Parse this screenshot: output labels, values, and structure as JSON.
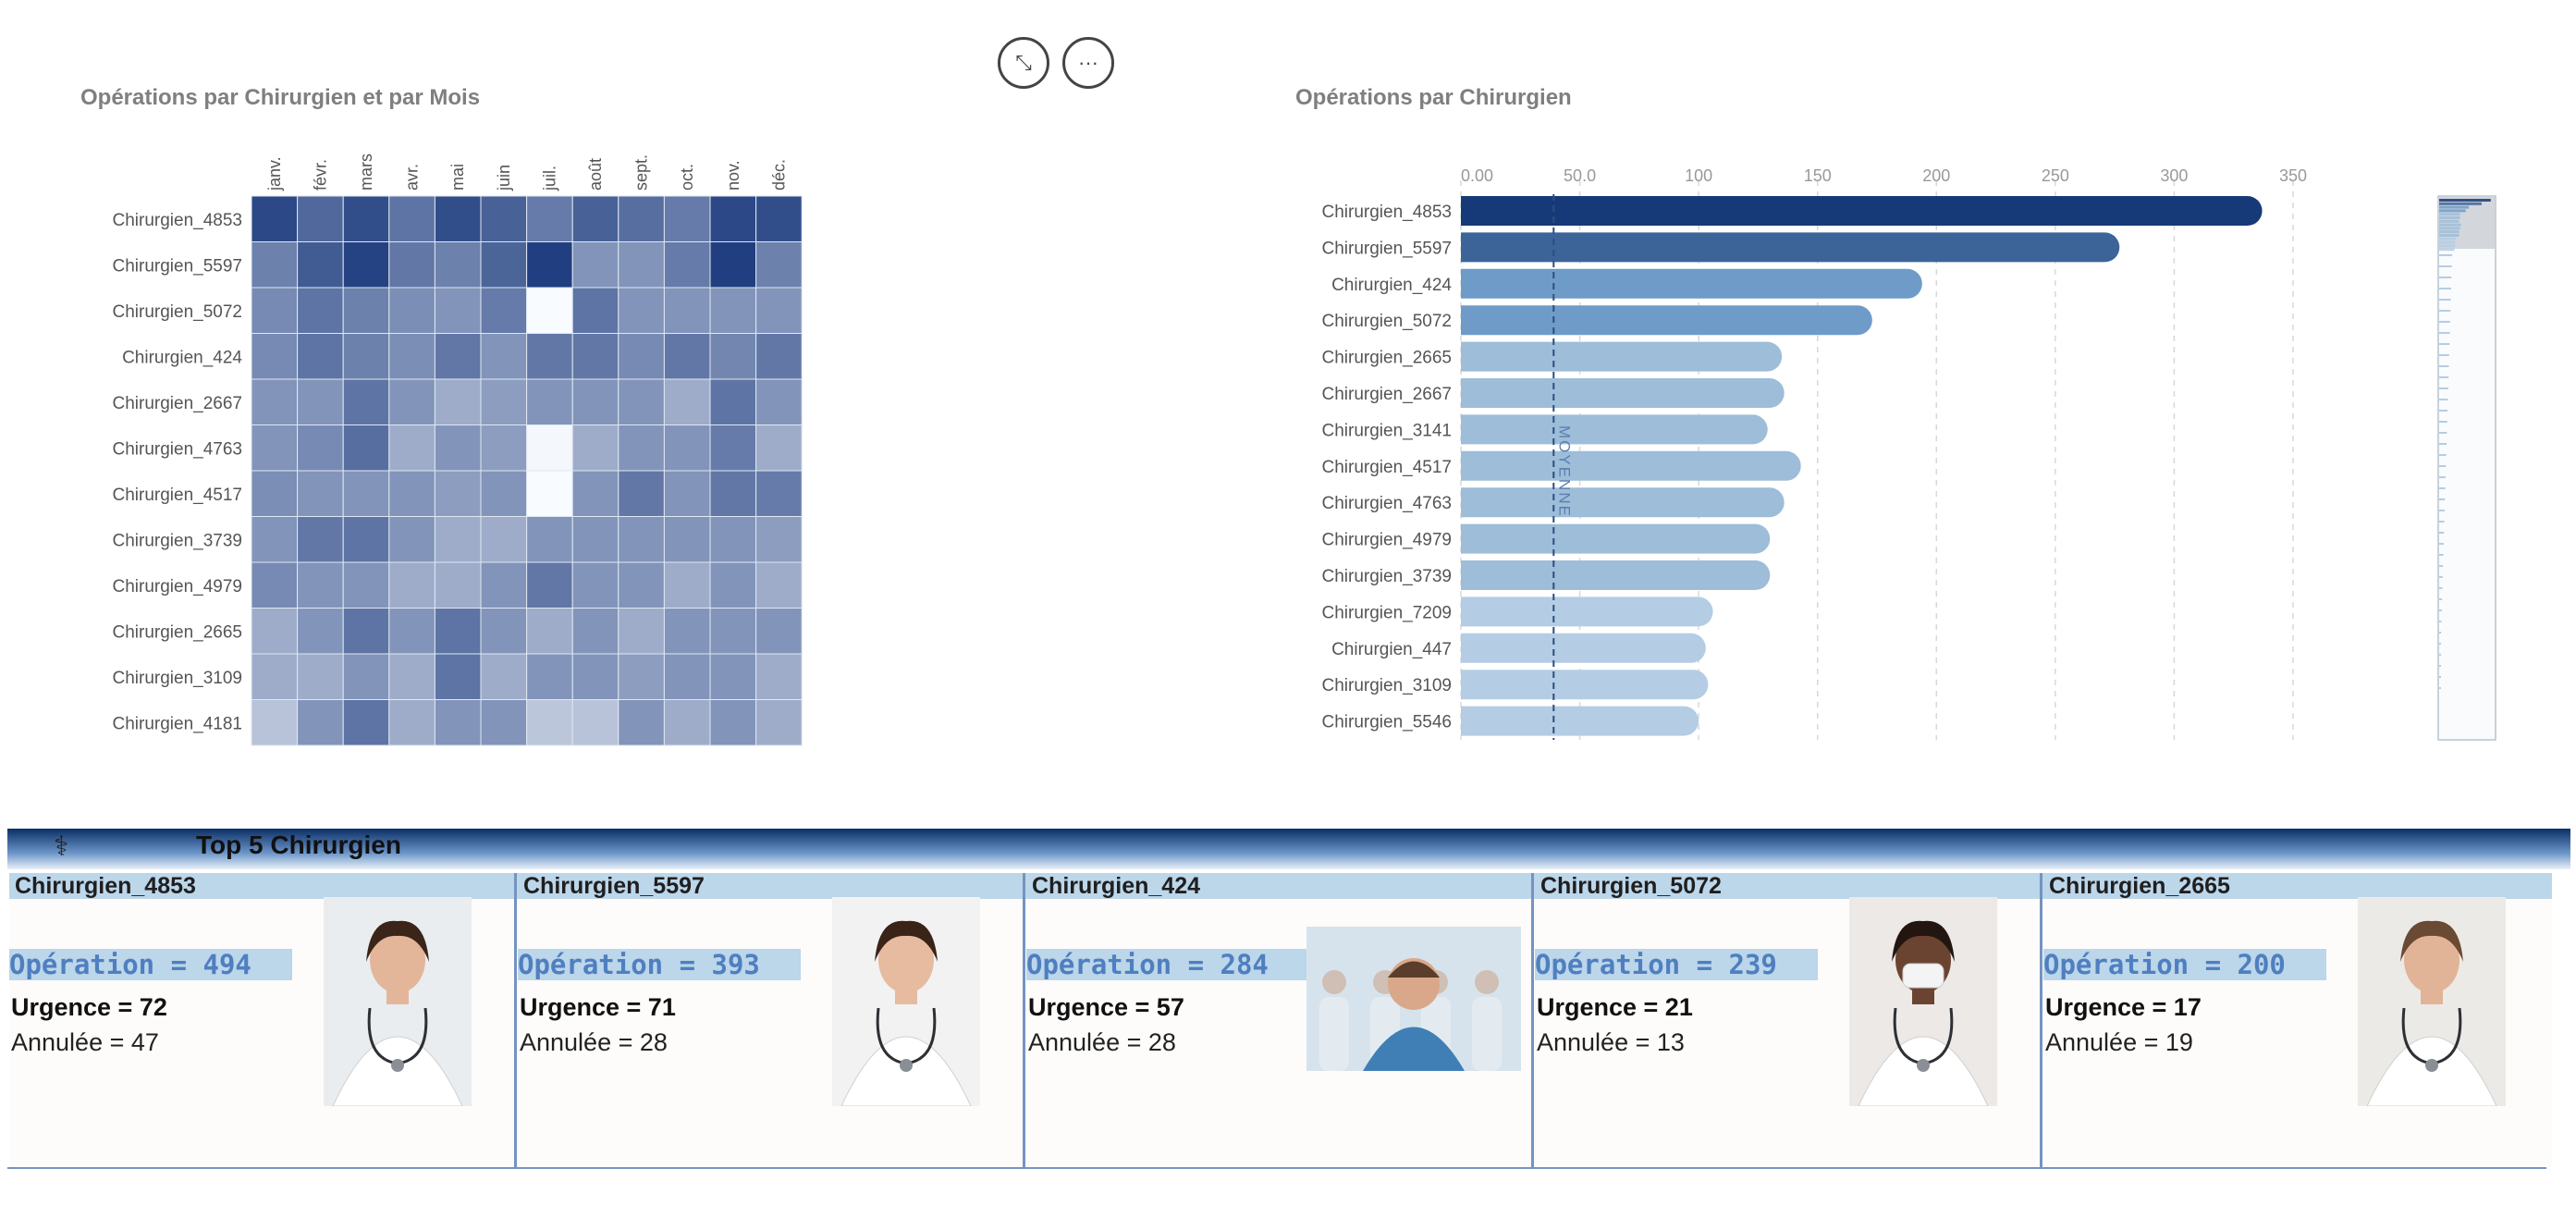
{
  "toolbar": {
    "expand_icon": "expand-icon",
    "more_icon": "more-icon",
    "expand_glyph": "⤡",
    "more_glyph": "···"
  },
  "heatmap": {
    "title": "Opérations par Chirurgien et par Mois",
    "chart_data": {
      "type": "heatmap",
      "months": [
        "janv.",
        "févr.",
        "mars",
        "avr.",
        "mai",
        "juin",
        "juil.",
        "août",
        "sept.",
        "oct.",
        "nov.",
        "déc."
      ],
      "rows": [
        "Chirurgien_4853",
        "Chirurgien_5597",
        "Chirurgien_5072",
        "Chirurgien_424",
        "Chirurgien_2667",
        "Chirurgien_4763",
        "Chirurgien_4517",
        "Chirurgien_3739",
        "Chirurgien_4979",
        "Chirurgien_2665",
        "Chirurgien_3109",
        "Chirurgien_4181"
      ],
      "intensity": [
        [
          0.95,
          0.78,
          0.92,
          0.72,
          0.92,
          0.82,
          0.68,
          0.82,
          0.75,
          0.68,
          0.95,
          0.92
        ],
        [
          0.65,
          0.85,
          0.98,
          0.7,
          0.65,
          0.8,
          1.0,
          0.55,
          0.55,
          0.68,
          1.0,
          0.65
        ],
        [
          0.6,
          0.72,
          0.65,
          0.58,
          0.55,
          0.68,
          0.0,
          0.72,
          0.55,
          0.55,
          0.55,
          0.55
        ],
        [
          0.6,
          0.72,
          0.65,
          0.58,
          0.7,
          0.55,
          0.7,
          0.7,
          0.6,
          0.7,
          0.62,
          0.7
        ],
        [
          0.55,
          0.55,
          0.72,
          0.55,
          0.42,
          0.5,
          0.55,
          0.55,
          0.55,
          0.42,
          0.72,
          0.55
        ],
        [
          0.55,
          0.6,
          0.75,
          0.42,
          0.55,
          0.5,
          0.02,
          0.42,
          0.55,
          0.55,
          0.68,
          0.42
        ],
        [
          0.58,
          0.55,
          0.55,
          0.55,
          0.5,
          0.55,
          0.0,
          0.55,
          0.7,
          0.55,
          0.7,
          0.68
        ],
        [
          0.55,
          0.7,
          0.72,
          0.55,
          0.42,
          0.42,
          0.55,
          0.55,
          0.55,
          0.55,
          0.55,
          0.5
        ],
        [
          0.6,
          0.55,
          0.55,
          0.42,
          0.42,
          0.55,
          0.7,
          0.55,
          0.55,
          0.42,
          0.55,
          0.42
        ],
        [
          0.42,
          0.55,
          0.72,
          0.55,
          0.72,
          0.55,
          0.42,
          0.55,
          0.42,
          0.55,
          0.55,
          0.55
        ],
        [
          0.42,
          0.42,
          0.55,
          0.42,
          0.72,
          0.42,
          0.55,
          0.55,
          0.5,
          0.55,
          0.55,
          0.42
        ],
        [
          0.3,
          0.55,
          0.72,
          0.42,
          0.55,
          0.55,
          0.28,
          0.3,
          0.55,
          0.42,
          0.55,
          0.42
        ]
      ]
    }
  },
  "barchart": {
    "title": "Opérations par Chirurgien",
    "reference_label": "MOYENNE",
    "chart_data": {
      "type": "bar",
      "orientation": "horizontal",
      "xlim": [
        0,
        350
      ],
      "xticks": [
        "0.00",
        "50.0",
        "100",
        "150",
        "200",
        "250",
        "300",
        "350"
      ],
      "tick_values": [
        0,
        50,
        100,
        150,
        200,
        250,
        300,
        350
      ],
      "reference_line": {
        "label": "MOYENNE",
        "value": 39
      },
      "categories": [
        "Chirurgien_4853",
        "Chirurgien_5597",
        "Chirurgien_424",
        "Chirurgien_5072",
        "Chirurgien_2665",
        "Chirurgien_2667",
        "Chirurgien_3141",
        "Chirurgien_4517",
        "Chirurgien_4763",
        "Chirurgien_4979",
        "Chirurgien_3739",
        "Chirurgien_7209",
        "Chirurgien_447",
        "Chirurgien_3109",
        "Chirurgien_5546"
      ],
      "values": [
        337,
        277,
        194,
        173,
        135,
        136,
        129,
        143,
        136,
        130,
        130,
        106,
        103,
        104,
        100
      ],
      "colors": [
        "#163a78",
        "#3d6499",
        "#6f9bc9",
        "#6f9bc9",
        "#9dbdd9",
        "#9dbdd9",
        "#9dbdd9",
        "#9dbdd9",
        "#9dbdd9",
        "#9dbdd9",
        "#9dbdd9",
        "#b4cde4",
        "#b4cde4",
        "#b4cde4",
        "#b4cde4"
      ]
    }
  },
  "top5": {
    "title": "Top 5 Chirurgien",
    "icon": "stethoscope-icon",
    "icon_glyph": "⚕",
    "cards": [
      {
        "name": "Chirurgien_4853",
        "operation": "Opération = 494",
        "urgence": "Urgence = 72",
        "annulee": "Annulée = 47"
      },
      {
        "name": "Chirurgien_5597",
        "operation": "Opération = 393",
        "urgence": "Urgence = 71",
        "annulee": "Annulée = 28"
      },
      {
        "name": "Chirurgien_424",
        "operation": "Opération = 284",
        "urgence": "Urgence = 57",
        "annulee": "Annulée = 28"
      },
      {
        "name": "Chirurgien_5072",
        "operation": "Opération = 239",
        "urgence": "Urgence = 21",
        "annulee": "Annulée = 13"
      },
      {
        "name": "Chirurgien_2665",
        "operation": "Opération = 200",
        "urgence": "Urgence = 17",
        "annulee": "Annulée = 19"
      }
    ]
  }
}
